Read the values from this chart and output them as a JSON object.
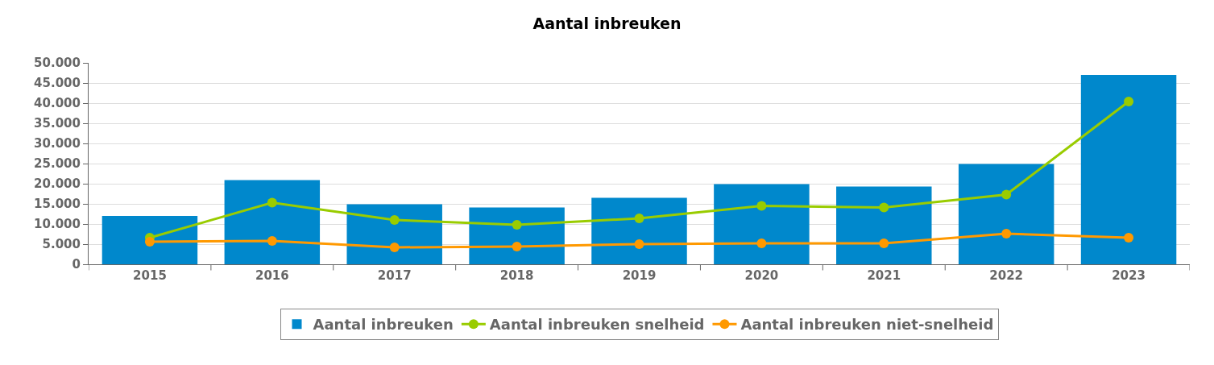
{
  "chart_data": {
    "type": "bar",
    "title": "Aantal inbreuken",
    "categories": [
      "2015",
      "2016",
      "2017",
      "2018",
      "2019",
      "2020",
      "2021",
      "2022",
      "2023"
    ],
    "series": [
      {
        "name": "Aantal inbreuken",
        "color": "#0088cc",
        "values": [
          12000,
          20900,
          14900,
          14100,
          16500,
          19900,
          19300,
          24900,
          47000
        ]
      },
      {
        "name": "Aantal inbreuken snelheid",
        "type": "line",
        "color": "#99cc00",
        "values": [
          6600,
          15300,
          11000,
          9800,
          11400,
          14500,
          14100,
          17300,
          40400
        ]
      },
      {
        "name": "Aantal inbreuken niet-snelheid",
        "type": "line",
        "color": "#ff9900",
        "values": [
          5600,
          5800,
          4200,
          4400,
          5000,
          5200,
          5200,
          7600,
          6600
        ]
      }
    ],
    "ylim": [
      0,
      50000
    ],
    "yticks": [
      0,
      {
        "value": 5000,
        "label": "5.000"
      },
      {
        "value": 10000,
        "label": "10.000"
      },
      {
        "value": 15000,
        "label": "15.000"
      },
      {
        "value": 20000,
        "label": "20.000"
      },
      {
        "value": 25000,
        "label": "25.000"
      },
      {
        "value": 30000,
        "label": "30.000"
      },
      {
        "value": 35000,
        "label": "35.000"
      },
      {
        "value": 40000,
        "label": "40.000"
      },
      {
        "value": 45000,
        "label": "45.000"
      },
      {
        "value": 50000,
        "label": "50.000"
      }
    ],
    "grid": "y",
    "legend": "bottom",
    "marker": "circle",
    "line_style": "solid"
  }
}
